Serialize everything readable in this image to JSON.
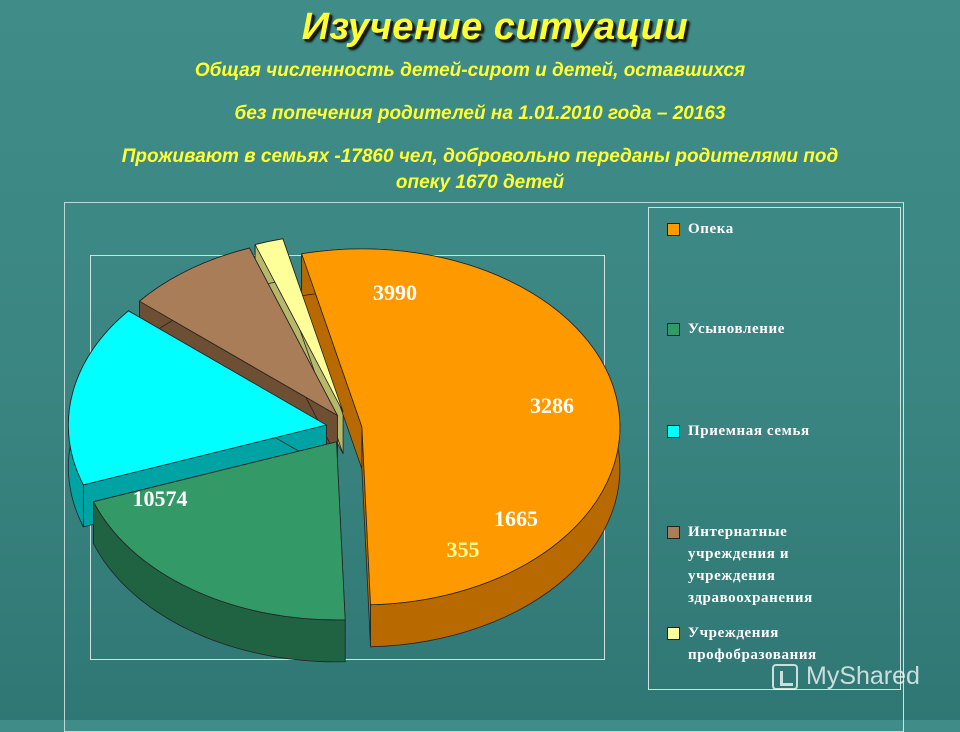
{
  "slide": {
    "title": "Изучение ситуации",
    "line1": "Общая численность детей-сирот и детей, оставшихся",
    "line2": "без попечения родителей на 1.01.2010 года – 20163",
    "line3a": "Проживают в семьях -17860 чел, добровольно переданы родителями под",
    "line3b": "опеку 1670 детей",
    "watermark": "MyShared"
  },
  "chart_data": {
    "type": "pie",
    "style": "3d-exploded",
    "legend_position": "right",
    "slices": [
      {
        "label": "Опека",
        "value": 10574,
        "color": "#ff9900",
        "side_color": "#b86a00"
      },
      {
        "label": "Усыновление",
        "value": 3990,
        "color": "#339966",
        "side_color": "#1f6342"
      },
      {
        "label": "Приемная семья",
        "value": 3286,
        "color": "#00ffff",
        "side_color": "#00a3a3"
      },
      {
        "label": "Интернатные учреждения и учреждения здравоохранения",
        "value": 1665,
        "color": "#a87d57",
        "side_color": "#6e4f33"
      },
      {
        "label": "Учреждения профобразования",
        "value": 355,
        "color": "#ffff99",
        "side_color": "#b8b86a"
      }
    ],
    "data_labels": [
      "10574",
      "3990",
      "3286",
      "1665",
      "355"
    ]
  }
}
